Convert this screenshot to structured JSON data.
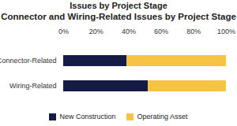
{
  "chart_data": {
    "type": "bar",
    "title": "Issues by Project Stage",
    "subtitle": "Connector and Wiring-Related Issues by Project Stage",
    "orientation": "horizontal",
    "stacked": true,
    "grid": false,
    "categories": [
      "Connector-Related",
      "Wiring-Related"
    ],
    "series": [
      {
        "name": "New Construction",
        "color": "#161b45",
        "values": [
          39,
          52
        ]
      },
      {
        "name": "Operating Asset",
        "color": "#f6c343",
        "values": [
          61,
          48
        ]
      }
    ],
    "xlim": [
      0,
      100
    ],
    "xticks": [
      {
        "value": 0,
        "label": "0%"
      },
      {
        "value": 20,
        "label": "20%"
      },
      {
        "value": 40,
        "label": "40%"
      },
      {
        "value": 60,
        "label": "60%"
      },
      {
        "value": 80,
        "label": "80%"
      },
      {
        "value": 100,
        "label": "100%"
      }
    ],
    "legend": "bottom"
  }
}
